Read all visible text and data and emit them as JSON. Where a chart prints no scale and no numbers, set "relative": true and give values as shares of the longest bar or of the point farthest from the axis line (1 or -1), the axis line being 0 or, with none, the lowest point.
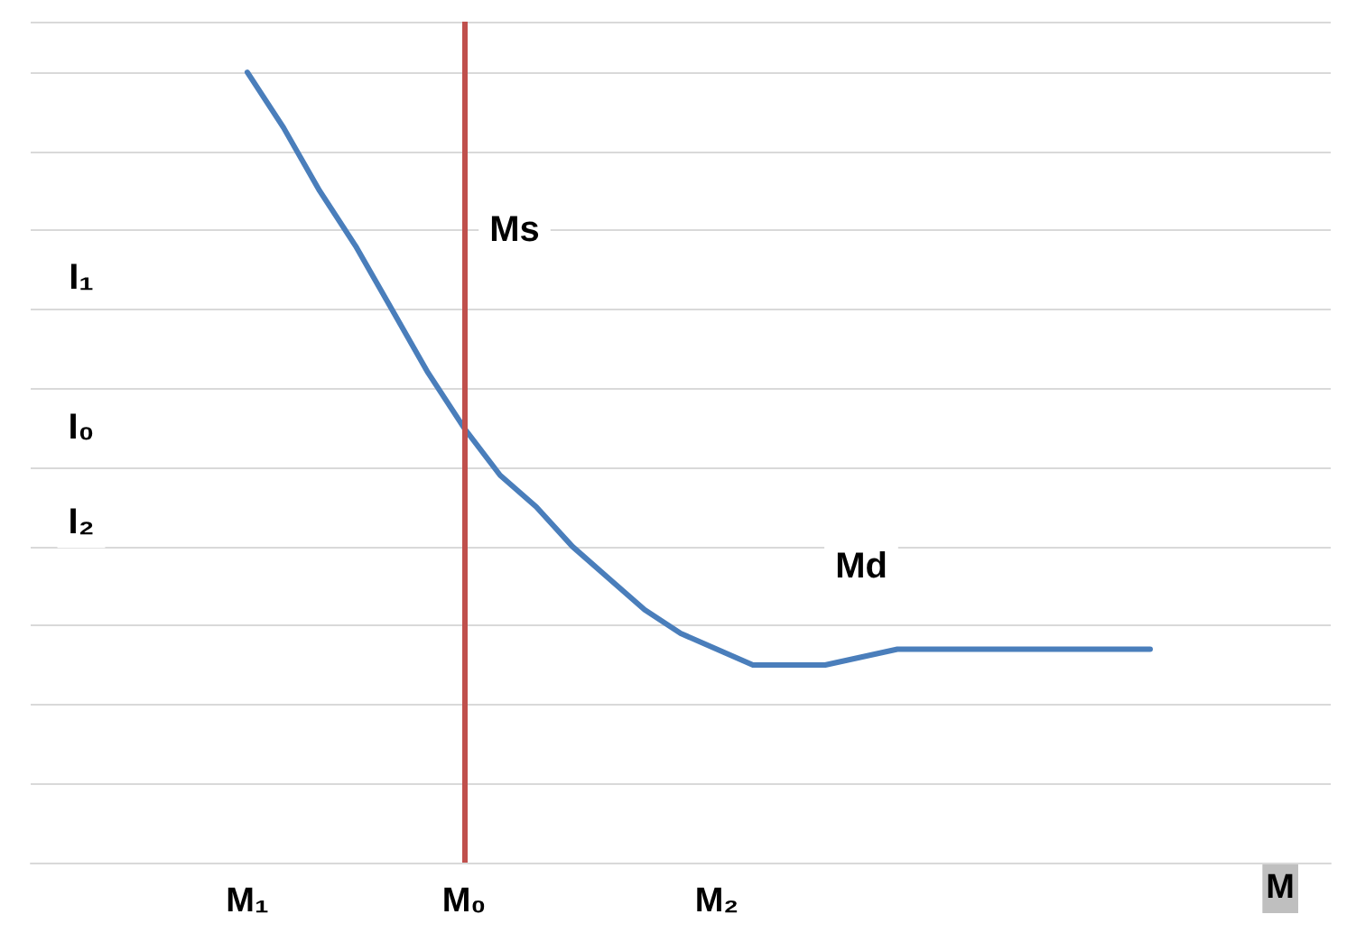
{
  "chart_data": {
    "type": "line",
    "relative": true,
    "xlabel": "M",
    "grid": "y",
    "legend": false,
    "marker": "none",
    "line_style": "solid",
    "categories": [
      null,
      null,
      null,
      null,
      null,
      null,
      "M₁",
      null,
      null,
      null,
      null,
      null,
      "M₀",
      null,
      null,
      null,
      null,
      null,
      null,
      "M₂",
      null,
      null,
      null,
      null,
      null,
      null,
      null,
      null,
      null,
      null,
      null,
      null,
      null,
      null,
      null,
      null,
      null
    ],
    "series": [
      {
        "name": "Md",
        "color": "#4a7ebb",
        "values": [
          null,
          null,
          null,
          null,
          null,
          null,
          1,
          0.93,
          0.85,
          0.78,
          0.7,
          0.62,
          0.55,
          0.49,
          0.45,
          0.4,
          0.36,
          0.32,
          0.29,
          0.27,
          0.25,
          0.25,
          0.25,
          0.26,
          0.27,
          0.27,
          0.27,
          0.27,
          0.27,
          0.27,
          0.27,
          0.27,
          null,
          null,
          null,
          null,
          null
        ]
      }
    ],
    "ref_lines": [
      {
        "axis": "x",
        "value": "M₀",
        "label": "Ms",
        "color": "#c0504d"
      }
    ],
    "annotations": [
      {
        "text": "I₁",
        "y": 0.74
      },
      {
        "text": "I₀",
        "y": 0.55
      },
      {
        "text": "I₂",
        "y": 0.43
      }
    ]
  }
}
